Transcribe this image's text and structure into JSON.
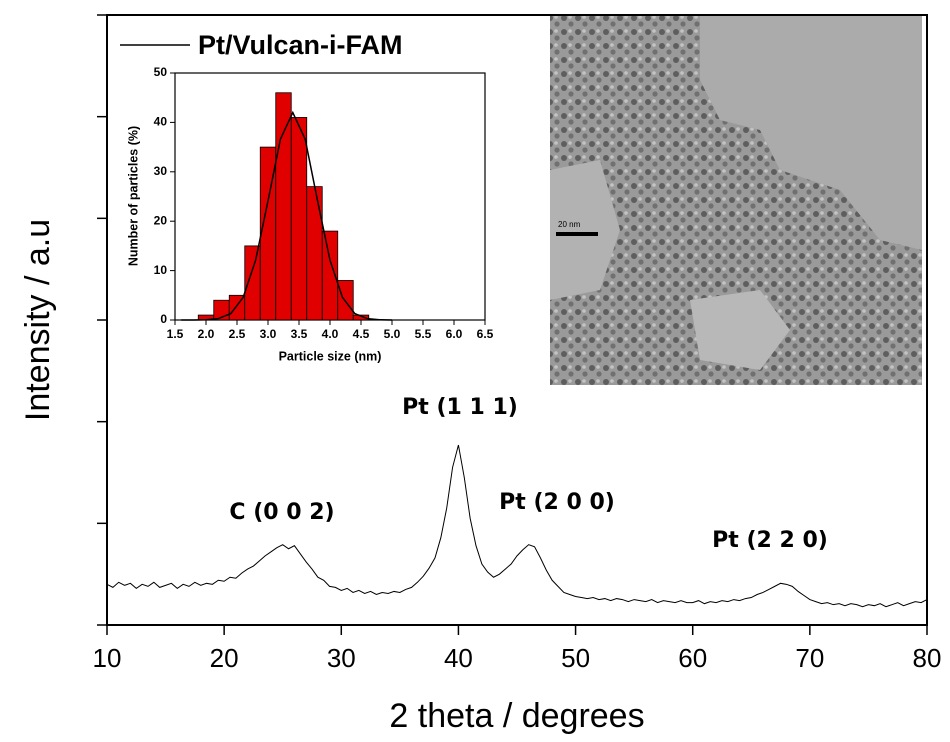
{
  "chart_data": [
    {
      "type": "line",
      "x_label": "2 theta / degrees",
      "y_label": "Intensity / a.u",
      "xlim": [
        10,
        80
      ],
      "xticks": [
        10,
        20,
        30,
        40,
        50,
        60,
        70,
        80
      ],
      "ylim": [
        0,
        6
      ],
      "yticks": [
        0,
        1,
        2,
        3,
        4,
        5,
        6
      ],
      "annotations": [
        "C (0 0 2)",
        "Pt (1 1 1)",
        "Pt (2 0 0)",
        "Pt (2 2 0)"
      ],
      "x": [
        10,
        10.5,
        11,
        11.5,
        12,
        12.5,
        13,
        13.5,
        14,
        14.5,
        15,
        15.5,
        16,
        16.5,
        17,
        17.5,
        18,
        18.5,
        19,
        19.5,
        20,
        20.5,
        21,
        21.5,
        22,
        22.5,
        23,
        23.5,
        24,
        24.5,
        25,
        25.5,
        26,
        26.5,
        27,
        27.5,
        28,
        28.5,
        29,
        29.5,
        30,
        30.5,
        31,
        31.5,
        32,
        32.5,
        33,
        33.5,
        34,
        34.5,
        35,
        35.5,
        36,
        36.5,
        37,
        37.5,
        38,
        38.5,
        39,
        39.5,
        40,
        40.5,
        41,
        41.5,
        42,
        42.5,
        43,
        43.5,
        44,
        44.5,
        45,
        45.5,
        46,
        46.5,
        47,
        47.5,
        48,
        48.5,
        49,
        49.5,
        50,
        50.5,
        51,
        51.5,
        52,
        52.5,
        53,
        53.5,
        54,
        54.5,
        55,
        55.5,
        56,
        56.5,
        57,
        57.5,
        58,
        58.5,
        59,
        59.5,
        60,
        60.5,
        61,
        61.5,
        62,
        62.5,
        63,
        63.5,
        64,
        64.5,
        65,
        65.5,
        66,
        66.5,
        67,
        67.5,
        68,
        68.5,
        69,
        69.5,
        70,
        70.5,
        71,
        71.5,
        72,
        72.5,
        73,
        73.5,
        74,
        74.5,
        75,
        75.5,
        76,
        76.5,
        77,
        77.5,
        78,
        78.5,
        79,
        79.5,
        80
      ],
      "series": [
        {
          "name": "Pt/Vulcan-i-FAM",
          "color": "#000000",
          "values": [
            0.4,
            0.37,
            0.42,
            0.39,
            0.41,
            0.36,
            0.4,
            0.38,
            0.42,
            0.37,
            0.39,
            0.41,
            0.36,
            0.4,
            0.38,
            0.42,
            0.39,
            0.41,
            0.4,
            0.44,
            0.43,
            0.47,
            0.46,
            0.51,
            0.55,
            0.58,
            0.63,
            0.68,
            0.72,
            0.76,
            0.79,
            0.75,
            0.78,
            0.7,
            0.62,
            0.55,
            0.47,
            0.44,
            0.38,
            0.37,
            0.34,
            0.36,
            0.32,
            0.34,
            0.31,
            0.33,
            0.3,
            0.32,
            0.31,
            0.33,
            0.32,
            0.35,
            0.37,
            0.42,
            0.48,
            0.56,
            0.66,
            0.86,
            1.15,
            1.55,
            1.77,
            1.45,
            1.05,
            0.78,
            0.6,
            0.52,
            0.47,
            0.5,
            0.55,
            0.6,
            0.68,
            0.74,
            0.79,
            0.77,
            0.66,
            0.54,
            0.44,
            0.38,
            0.32,
            0.3,
            0.28,
            0.27,
            0.26,
            0.27,
            0.25,
            0.26,
            0.24,
            0.26,
            0.25,
            0.23,
            0.25,
            0.24,
            0.23,
            0.25,
            0.22,
            0.24,
            0.23,
            0.22,
            0.24,
            0.22,
            0.22,
            0.24,
            0.21,
            0.23,
            0.22,
            0.24,
            0.23,
            0.25,
            0.24,
            0.26,
            0.27,
            0.3,
            0.32,
            0.35,
            0.38,
            0.41,
            0.4,
            0.38,
            0.33,
            0.29,
            0.25,
            0.23,
            0.21,
            0.22,
            0.2,
            0.21,
            0.19,
            0.21,
            0.2,
            0.18,
            0.2,
            0.19,
            0.21,
            0.18,
            0.2,
            0.22,
            0.19,
            0.21,
            0.23,
            0.22,
            0.25
          ]
        }
      ]
    },
    {
      "type": "histogram",
      "x_label": "Particle size (nm)",
      "y_label": "Number of particles (%)",
      "xlim": [
        1.5,
        6.5
      ],
      "xticks": [
        1.5,
        {
          "value": 2,
          "label": "2.0"
        },
        2.5,
        {
          "value": 3,
          "label": "3.0"
        },
        3.5,
        {
          "value": 4,
          "label": "4.0"
        },
        4.5,
        {
          "value": 5,
          "label": "5.0"
        },
        5.5,
        {
          "value": 6,
          "label": "6.0"
        },
        6.5
      ],
      "ylim": [
        0,
        50
      ],
      "yticks": [
        0,
        10,
        20,
        30,
        40,
        50
      ],
      "color": "#e00000",
      "bins": [
        1.875,
        2.125,
        2.375,
        2.625,
        2.875,
        3.125,
        3.375,
        3.625,
        3.875,
        4.125,
        4.375,
        4.625
      ],
      "values": [
        1,
        4,
        5,
        15,
        35,
        46,
        41,
        27,
        18,
        8,
        1
      ],
      "fit": {
        "color": "#000000",
        "x": [
          1.6,
          1.8,
          2.0,
          2.2,
          2.4,
          2.6,
          2.8,
          3.0,
          3.2,
          3.4,
          3.6,
          3.8,
          4.0,
          4.2,
          4.4,
          4.6,
          4.8,
          5.0
        ],
        "values": [
          0,
          0,
          0.05,
          0.29,
          1.3,
          4.6,
          12.1,
          24.1,
          36.6,
          42,
          36.6,
          24.1,
          12.1,
          4.6,
          1.3,
          0.29,
          0.05,
          0
        ]
      }
    }
  ],
  "image": {
    "scale_bar": "20 nm"
  }
}
